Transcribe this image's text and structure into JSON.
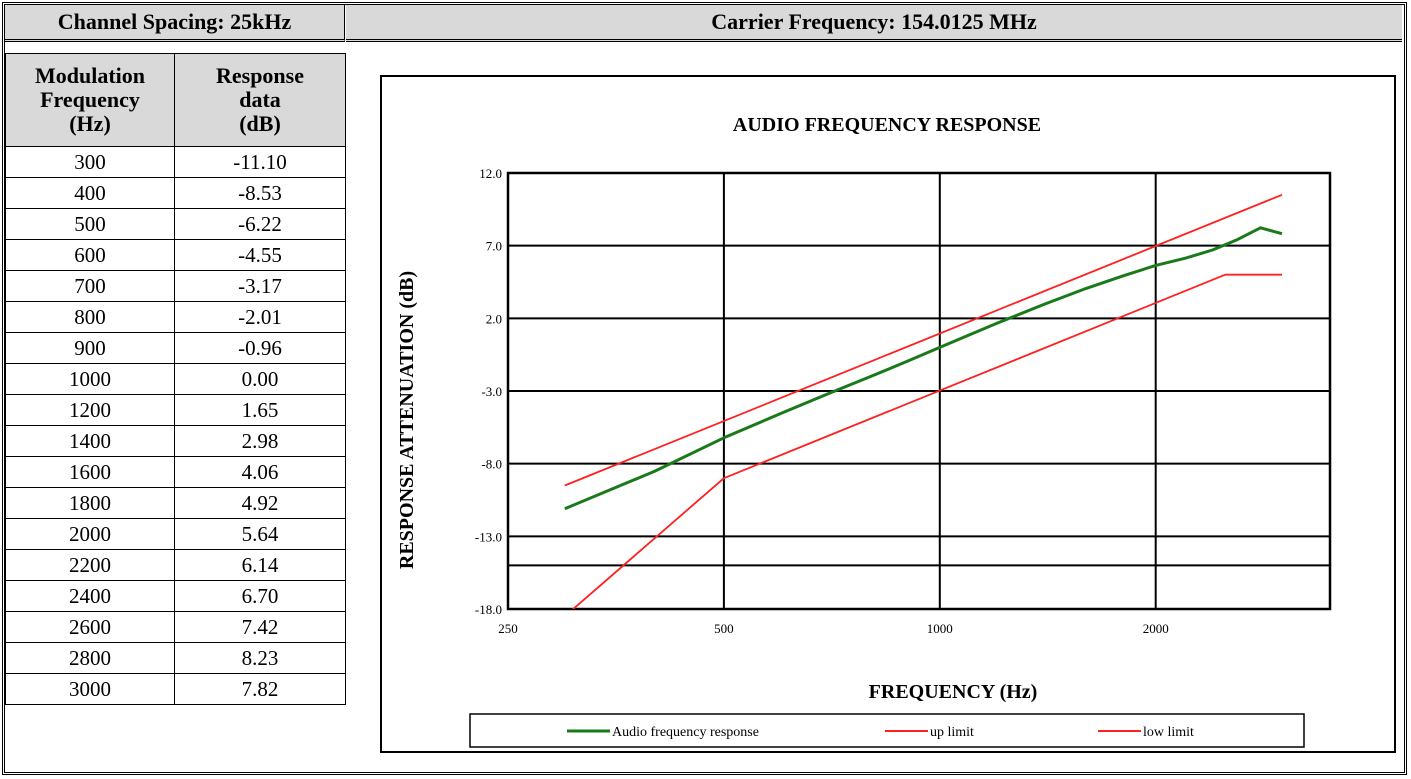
{
  "header": {
    "channel_spacing": "Channel Spacing: 25kHz",
    "carrier_frequency": "Carrier Frequency: 154.0125 MHz"
  },
  "table": {
    "col1_header": [
      "Modulation",
      "Frequency",
      "(Hz)"
    ],
    "col2_header": [
      "Response",
      "data",
      "(dB)"
    ],
    "rows": [
      [
        "300",
        "-11.10"
      ],
      [
        "400",
        "-8.53"
      ],
      [
        "500",
        "-6.22"
      ],
      [
        "600",
        "-4.55"
      ],
      [
        "700",
        "-3.17"
      ],
      [
        "800",
        "-2.01"
      ],
      [
        "900",
        "-0.96"
      ],
      [
        "1000",
        "0.00"
      ],
      [
        "1200",
        "1.65"
      ],
      [
        "1400",
        "2.98"
      ],
      [
        "1600",
        "4.06"
      ],
      [
        "1800",
        "4.92"
      ],
      [
        "2000",
        "5.64"
      ],
      [
        "2200",
        "6.14"
      ],
      [
        "2400",
        "6.70"
      ],
      [
        "2600",
        "7.42"
      ],
      [
        "2800",
        "8.23"
      ],
      [
        "3000",
        "7.82"
      ]
    ]
  },
  "chart_data": {
    "type": "line",
    "title": "AUDIO FREQUENCY RESPONSE",
    "xlabel": "FREQUENCY (Hz)",
    "ylabel": "RESPONSE ATTENUATION (dB)",
    "x_scale": "log",
    "xlim": [
      250,
      3500
    ],
    "ylim": [
      -18.0,
      12.0
    ],
    "x_ticks": [
      250,
      500,
      1000,
      2000
    ],
    "x_tick_labels": [
      "250",
      "500",
      "1000",
      "2000"
    ],
    "y_ticks": [
      -18.0,
      -13.0,
      -8.0,
      -3.0,
      2.0,
      7.0,
      12.0
    ],
    "y_tick_labels": [
      "-18.0",
      "-13.0",
      "-8.0",
      "-3.0",
      "2.0",
      "7.0",
      "12.0"
    ],
    "extra_gridline_y": -15.0,
    "grid": true,
    "legend_position": "bottom",
    "series": [
      {
        "name": "Audio frequency response",
        "color": "#1a7a1a",
        "x": [
          300,
          400,
          500,
          600,
          700,
          800,
          900,
          1000,
          1200,
          1400,
          1600,
          1800,
          2000,
          2200,
          2400,
          2600,
          2800,
          3000
        ],
        "y": [
          -11.1,
          -8.53,
          -6.22,
          -4.55,
          -3.17,
          -2.01,
          -0.96,
          0.0,
          1.65,
          2.98,
          4.06,
          4.92,
          5.64,
          6.14,
          6.7,
          7.42,
          8.23,
          7.82
        ]
      },
      {
        "name": "up limit",
        "color": "#ff2020",
        "x": [
          300,
          3000
        ],
        "y": [
          -9.5,
          10.5
        ]
      },
      {
        "name": "low limit",
        "color": "#ff2020",
        "x": [
          300,
          500,
          2500,
          3000
        ],
        "y": [
          -18.5,
          -9.0,
          5.0,
          5.0
        ]
      }
    ]
  }
}
